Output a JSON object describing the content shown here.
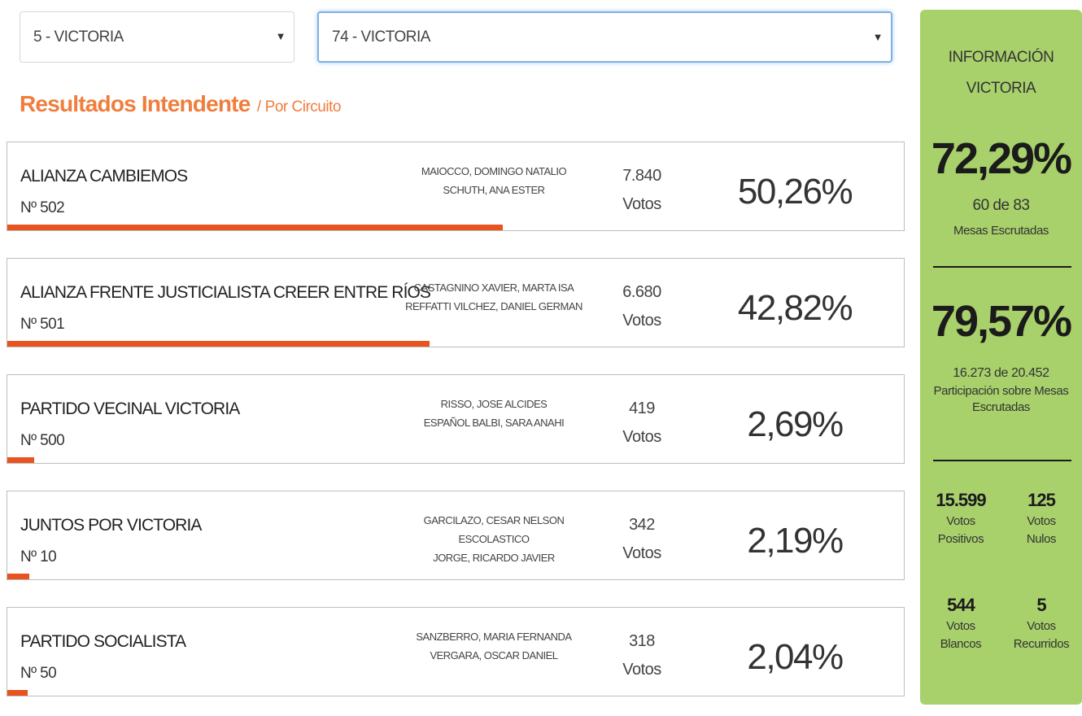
{
  "filters": {
    "department": {
      "selected": "5 - VICTORIA"
    },
    "circuit": {
      "selected": "74 - VICTORIA"
    }
  },
  "heading": {
    "title": "Resultados Intendente",
    "separator": "/",
    "subtitle": "Por Circuito"
  },
  "results": [
    {
      "party": "ALIANZA CAMBIEMOS",
      "number": "Nº 502",
      "candidate_1": "MAIOCCO, DOMINGO NATALIO",
      "candidate_2": "SCHUTH, ANA ESTER",
      "votes": "7.840",
      "votes_label": "Votos",
      "percent": "50,26%",
      "percent_value": 50.26
    },
    {
      "party": "ALIANZA FRENTE JUSTICIALISTA CREER ENTRE RÍOS",
      "number": "Nº 501",
      "candidate_1": "CASTAGNINO XAVIER, MARTA ISA",
      "candidate_2": "REFFATTI VILCHEZ, DANIEL GERMAN",
      "votes": "6.680",
      "votes_label": "Votos",
      "percent": "42,82%",
      "percent_value": 42.82
    },
    {
      "party": "PARTIDO VECINAL VICTORIA",
      "number": "Nº 500",
      "candidate_1": "RISSO, JOSE ALCIDES",
      "candidate_2": "ESPAÑOL BALBI, SARA ANAHI",
      "votes": "419",
      "votes_label": "Votos",
      "percent": "2,69%",
      "percent_value": 2.69
    },
    {
      "party": "JUNTOS POR VICTORIA",
      "number": "Nº 10",
      "candidate_1": "GARCILAZO, CESAR NELSON ESCOLASTICO",
      "candidate_2": "JORGE, RICARDO JAVIER",
      "votes": "342",
      "votes_label": "Votos",
      "percent": "2,19%",
      "percent_value": 2.19
    },
    {
      "party": "PARTIDO SOCIALISTA",
      "number": "Nº 50",
      "candidate_1": "SANZBERRO, MARIA FERNANDA",
      "candidate_2": "VERGARA, OSCAR DANIEL",
      "votes": "318",
      "votes_label": "Votos",
      "percent": "2,04%",
      "percent_value": 2.04
    }
  ],
  "info": {
    "title_line1": "INFORMACIÓN",
    "title_line2": "VICTORIA",
    "mesas_percent": "72,29%",
    "mesas_count": "60 de 83",
    "mesas_label": "Mesas Escrutadas",
    "participation_percent": "79,57%",
    "participation_count": "16.273 de 20.452",
    "participation_label": "Participación sobre Mesas Escrutadas",
    "stats": [
      {
        "value": "15.599",
        "label_1": "Votos",
        "label_2": "Positivos"
      },
      {
        "value": "125",
        "label_1": "Votos",
        "label_2": "Nulos"
      },
      {
        "value": "544",
        "label_1": "Votos",
        "label_2": "Blancos"
      },
      {
        "value": "5",
        "label_1": "Votos",
        "label_2": "Recurridos"
      }
    ]
  },
  "colors": {
    "accent": "#f07d3c",
    "bar": "#e8541f",
    "panel": "#a8d16b"
  }
}
